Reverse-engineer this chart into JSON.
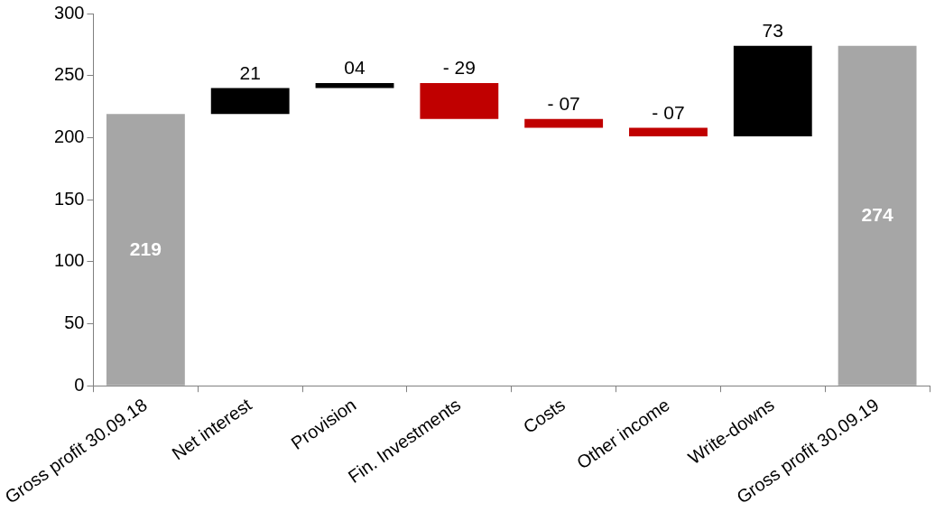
{
  "chart_data": {
    "type": "bar",
    "categories": [
      "Gross profit 30.09.18",
      "Net interest",
      "Provision",
      "Fin. Investments",
      "Costs",
      "Other income",
      "Write-downs",
      "Gross profit 30.09.19"
    ],
    "values": [
      219,
      21,
      4,
      -29,
      -7,
      -7,
      73,
      274
    ],
    "base": [
      0,
      219,
      240,
      244,
      215,
      208,
      201,
      0
    ],
    "colors": [
      "#a6a6a6",
      "#000000",
      "#000000",
      "#c00000",
      "#c00000",
      "#c00000",
      "#000000",
      "#a6a6a6"
    ],
    "value_labels": [
      "219",
      "21",
      "04",
      "- 29",
      "- 07",
      "- 07",
      "73",
      "274"
    ],
    "ylim": [
      0,
      300
    ],
    "yticks": [
      0,
      50,
      100,
      150,
      200,
      250,
      300
    ],
    "grid": false,
    "legend": false
  }
}
